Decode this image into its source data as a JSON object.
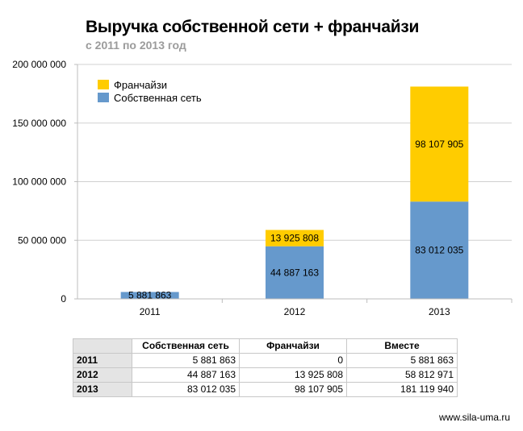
{
  "header": {
    "title": "Выручка собственной сети + франчайзи",
    "subtitle": "с 2011 по 2013 год"
  },
  "chart_data": {
    "type": "bar",
    "stacked": true,
    "title": "Выручка собственной сети + франчайзи",
    "subtitle": "с 2011 по 2013 год",
    "categories": [
      "2011",
      "2012",
      "2013"
    ],
    "series": [
      {
        "name": "Собственная сеть",
        "color": "#6699cc",
        "values": [
          5881863,
          44887163,
          83012035
        ],
        "labels": [
          "5 881 863",
          "44 887 163",
          "83 012 035"
        ]
      },
      {
        "name": "Франчайзи",
        "color": "#ffcc00",
        "values": [
          0,
          13925808,
          98107905
        ],
        "labels": [
          "",
          "13 925 808",
          "98 107 905"
        ]
      }
    ],
    "ylim": [
      0,
      200000000
    ],
    "yticks": [
      0,
      50000000,
      100000000,
      150000000,
      200000000
    ],
    "ytick_labels": [
      "0",
      "50 000 000",
      "100 000 000",
      "150 000 000",
      "200 000 000"
    ],
    "grid": true,
    "legend_position": "top-left",
    "legend": [
      "Франчайзи",
      "Собственная сеть"
    ]
  },
  "table": {
    "headers": [
      "",
      "Собственная сеть",
      "Франчайзи",
      "Вместе"
    ],
    "rows": [
      {
        "year": "2011",
        "own": "5 881 863",
        "franchise": "0",
        "total": "5 881 863"
      },
      {
        "year": "2012",
        "own": "44 887 163",
        "franchise": "13 925 808",
        "total": "58 812 971"
      },
      {
        "year": "2013",
        "own": "83 012 035",
        "franchise": "98 107 905",
        "total": "181 119 940"
      }
    ]
  },
  "footer": {
    "site": "www.sila-uma.ru"
  }
}
